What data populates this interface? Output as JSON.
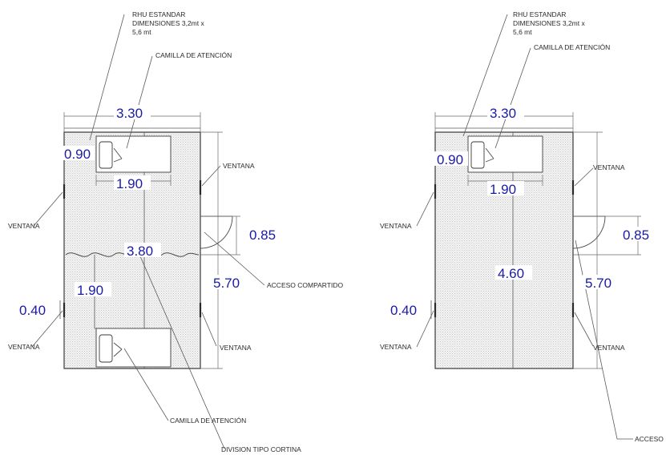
{
  "left_plan": {
    "rhu_label": [
      "RHU ESTANDAR",
      "DIMENSIONES 3,2mt x",
      "5,6 mt"
    ],
    "camilla_top": "CAMILLA DE ATENCIÓN",
    "width": "3.30",
    "bed_width": "0.90",
    "bed_length": "1.90",
    "ventana_right": "VENTANA",
    "ventana_left": "VENTANA",
    "door_width": "0.85",
    "curtain_span": "3.80",
    "acceso": "ACCESO COMPARTIDO",
    "bed_length_2": "1.90",
    "height": "5.70",
    "window_offset": "0.40",
    "ventana_bottom_left": "VENTANA",
    "ventana_bottom_right": "VENTANA",
    "camilla_bottom": "CAMILLA DE ATENCIÓN",
    "division": "DIVISION TIPO CORTINA"
  },
  "right_plan": {
    "rhu_label": [
      "RHU ESTANDAR",
      "DIMENSIONES 3,2mt x",
      "5,6 mt"
    ],
    "camilla_top": "CAMILLA DE ATENCIÓN",
    "width": "3.30",
    "bed_width": "0.90",
    "bed_length": "1.90",
    "ventana_right": "VENTANA",
    "ventana_left": "VENTANA",
    "door_width": "0.85",
    "inner_length": "4.60",
    "height": "5.70",
    "window_offset": "0.40",
    "ventana_bottom_left": "VENTANA",
    "ventana_bottom_right": "VENTANA",
    "acceso": "ACCESO"
  }
}
